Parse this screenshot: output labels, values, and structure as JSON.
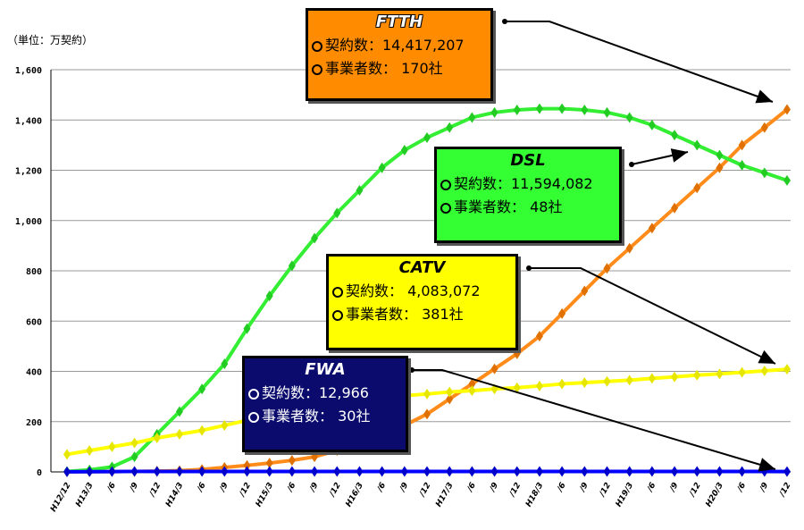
{
  "unit_label": "（単位：万契約）",
  "chart_data": {
    "type": "line",
    "ylim": [
      0,
      1600
    ],
    "yticks": [
      "0",
      "200",
      "400",
      "600",
      "800",
      "1,000",
      "1,200",
      "1,400",
      "1,600"
    ],
    "categories": [
      "H12/12",
      "H13/3",
      "/6",
      "/9",
      "/12",
      "H14/3",
      "/6",
      "/9",
      "/12",
      "H15/3",
      "/6",
      "/9",
      "/12",
      "H16/3",
      "/6",
      "/9",
      "/12",
      "H17/3",
      "/6",
      "/9",
      "/12",
      "H18/3",
      "/6",
      "/9",
      "/12",
      "H19/3",
      "/6",
      "/9",
      "/12",
      "H20/3",
      "/6",
      "/9",
      "/12"
    ],
    "series": [
      {
        "name": "FTTH",
        "color": "#ff8c1a",
        "marker": "#e07000",
        "values": [
          0.5,
          1,
          1.5,
          2,
          3,
          5,
          10,
          18,
          26,
          35,
          46,
          60,
          85,
          115,
          148,
          185,
          230,
          290,
          350,
          410,
          470,
          540,
          630,
          720,
          810,
          890,
          970,
          1050,
          1130,
          1210,
          1300,
          1370,
          1441.7
        ]
      },
      {
        "name": "DSL",
        "color": "#33ee33",
        "marker": "#22cc22",
        "values": [
          2,
          8,
          20,
          60,
          150,
          240,
          330,
          430,
          570,
          700,
          820,
          930,
          1030,
          1120,
          1210,
          1280,
          1330,
          1370,
          1410,
          1430,
          1440,
          1445,
          1445,
          1440,
          1430,
          1410,
          1380,
          1340,
          1300,
          1260,
          1220,
          1190,
          1159.4
        ]
      },
      {
        "name": "CATV",
        "color": "#ffff00",
        "marker": "#e6e600",
        "values": [
          70,
          85,
          100,
          115,
          135,
          150,
          165,
          185,
          205,
          225,
          245,
          262,
          275,
          285,
          295,
          303,
          310,
          318,
          323,
          330,
          335,
          342,
          350,
          355,
          360,
          365,
          372,
          378,
          385,
          390,
          396,
          402,
          408.3
        ]
      },
      {
        "name": "FWA",
        "color": "#0000ff",
        "marker": "#0000cc",
        "values": [
          0.5,
          1,
          1.5,
          2,
          2,
          2,
          2,
          2,
          2,
          2,
          2,
          2,
          2,
          2,
          2,
          2,
          2,
          2,
          2,
          2,
          2,
          2,
          2,
          2,
          2,
          2,
          2,
          2,
          2,
          2,
          1.8,
          1.6,
          1.3
        ]
      }
    ]
  },
  "callouts": {
    "ftth": {
      "title": "FTTH",
      "contracts": "契約数：14,417,207",
      "operators": "事業者数： 170社"
    },
    "dsl": {
      "title": "DSL",
      "contracts": "契約数：11,594,082",
      "operators": "事業者数： 48社"
    },
    "catv": {
      "title": "CATV",
      "contracts": "契約数： 4,083,072",
      "operators": "事業者数： 381社"
    },
    "fwa": {
      "title": "FWA",
      "contracts": "契約数：12,966",
      "operators": "事業者数： 30社"
    }
  }
}
